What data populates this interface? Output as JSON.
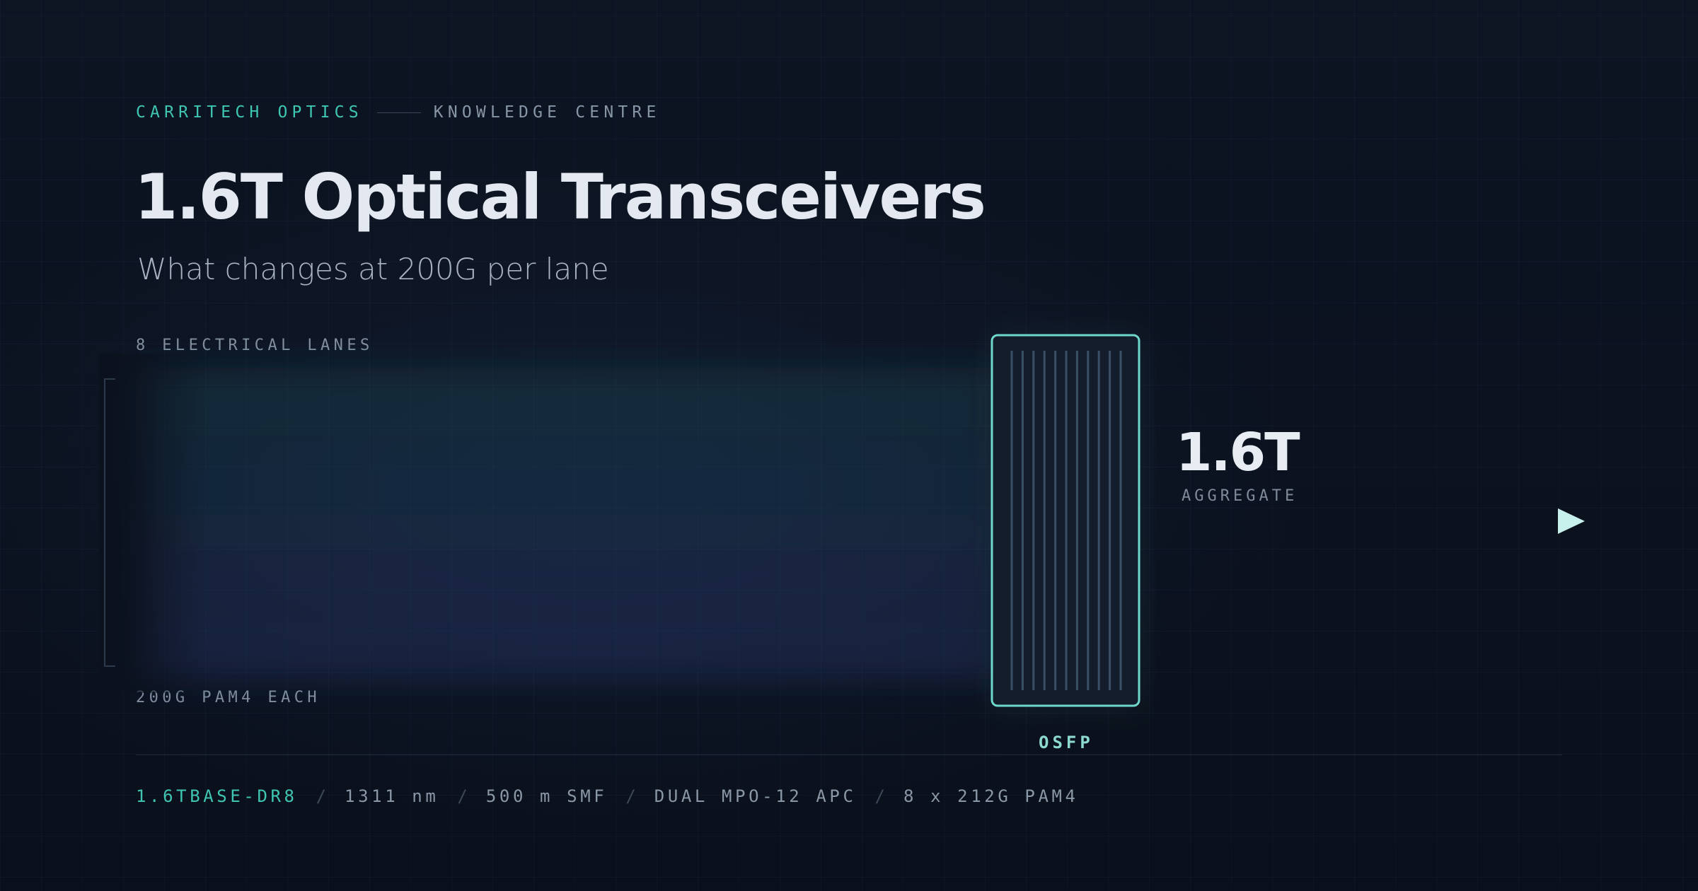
{
  "header": {
    "brand": "CARRITECH OPTICS",
    "section": "KNOWLEDGE CENTRE"
  },
  "title": "1.6T Optical Transceivers",
  "subtitle": "What changes at 200G per lane",
  "lanes": {
    "label": "8 ELECTRICAL LANES",
    "count": 8,
    "per_lane_label": "200G PAM4 EACH",
    "colors": [
      "#3fd0bd",
      "#3cc6c3",
      "#48c8cf",
      "#56b9d2",
      "#5aa6db",
      "#5f95e0",
      "#6a86e6",
      "#6f7ee8"
    ]
  },
  "module": {
    "label": "OSFP",
    "border_color": "#6fd8cc",
    "fin_count": 11
  },
  "aggregate": {
    "value": "1.6T",
    "label": "AGGREGATE",
    "arrow_color": "#c8f1ee"
  },
  "specs": [
    "1.6TBASE-DR8",
    "1311 nm",
    "500 m SMF",
    "DUAL MPO-12 APC",
    "8 x 212G PAM4"
  ],
  "colors": {
    "background": "#0b111d",
    "accent": "#3fc6b2",
    "title": "#e4e9f1",
    "muted": "#8796a6"
  }
}
